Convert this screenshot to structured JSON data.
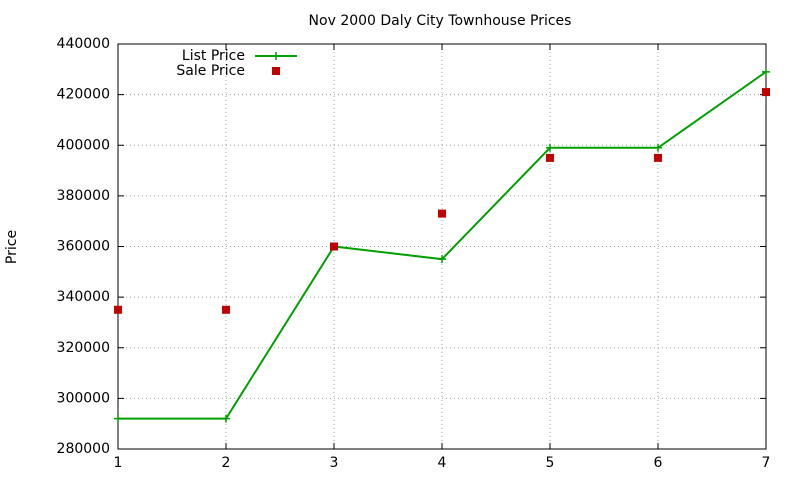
{
  "chart_data": {
    "type": "line",
    "title": "Nov 2000 Daly City Townhouse Prices",
    "y_label": "Price",
    "x": [
      1,
      2,
      3,
      4,
      5,
      6,
      7
    ],
    "series": [
      {
        "name": "List Price",
        "color": "#00a000",
        "mode": "linespoints",
        "values": [
          292000,
          292000,
          360000,
          355000,
          399000,
          399000,
          429000
        ]
      },
      {
        "name": "Sale Price",
        "color": "#c00000",
        "mode": "points",
        "values": [
          335000,
          335000,
          360000,
          373000,
          395000,
          395000,
          421000
        ]
      }
    ],
    "xlim": [
      1,
      7
    ],
    "xticks": [
      1,
      2,
      3,
      4,
      5,
      6,
      7
    ],
    "ylim": [
      280000,
      440000
    ],
    "yticks": [
      280000,
      300000,
      320000,
      340000,
      360000,
      380000,
      400000,
      420000,
      440000
    ],
    "grid": true,
    "legend": "top-left"
  }
}
